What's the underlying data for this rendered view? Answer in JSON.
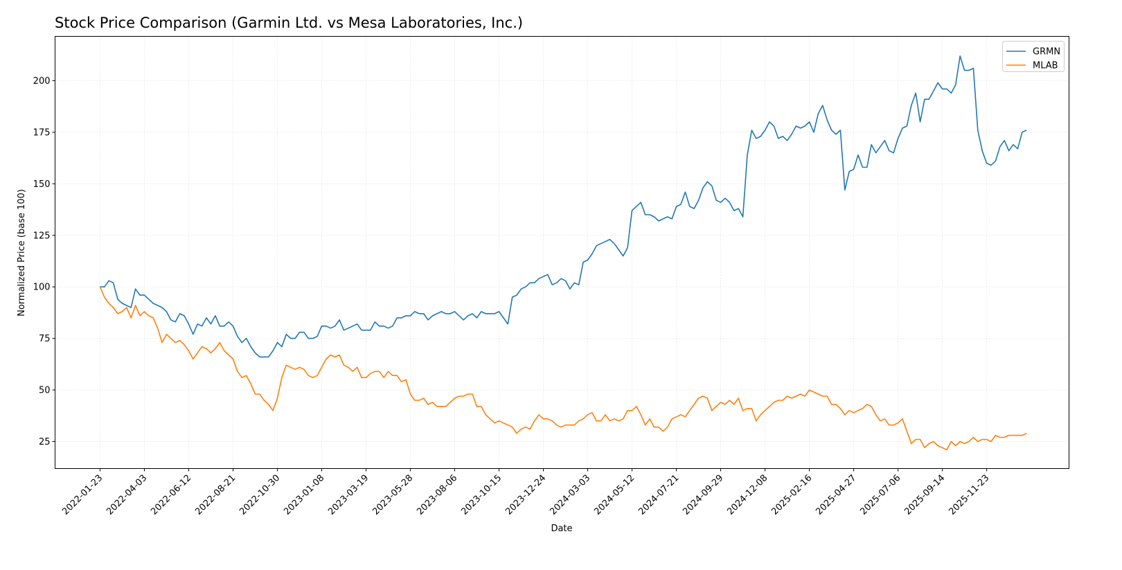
{
  "chart_data": {
    "type": "line",
    "title": "Stock Price Comparison (Garmin Ltd. vs Mesa Laboratories, Inc.)",
    "xlabel": "Date",
    "ylabel": "Normalized Price (base 100)",
    "ylim": [
      11.9,
      221.5
    ],
    "yticks": [
      25,
      50,
      75,
      100,
      125,
      150,
      175,
      200
    ],
    "xticks": [
      "2022-01-23",
      "2022-04-03",
      "2022-06-12",
      "2022-08-21",
      "2022-10-30",
      "2023-01-08",
      "2023-03-19",
      "2023-05-28",
      "2023-08-06",
      "2023-10-15",
      "2023-12-24",
      "2024-03-03",
      "2024-05-12",
      "2024-07-21",
      "2024-09-29",
      "2024-12-08",
      "2025-02-16",
      "2025-04-27",
      "2025-07-06",
      "2025-09-14",
      "2025-11-23"
    ],
    "x_start": "2022-01-23",
    "x_step_days": 7,
    "xlim_days": [
      -71,
      1530
    ],
    "grid": true,
    "legend_position": "top-right",
    "series": [
      {
        "name": "GRMN",
        "color": "#1f77b4",
        "values": [
          100,
          100,
          103,
          102,
          94,
          92,
          91,
          90,
          99,
          96,
          96,
          94,
          92,
          91,
          90,
          88,
          84,
          83,
          87,
          86,
          82,
          77,
          82,
          81,
          85,
          82,
          86,
          81,
          81,
          83,
          81,
          76,
          73,
          75,
          71,
          68,
          66,
          66,
          66,
          69,
          73,
          71,
          77,
          75,
          75,
          78,
          78,
          75,
          75,
          76,
          81,
          81,
          80,
          81,
          84,
          79,
          80,
          81,
          82,
          79,
          79,
          79,
          83,
          81,
          81,
          80,
          81,
          85,
          85,
          86,
          86,
          88,
          87,
          87,
          84,
          86,
          87,
          88,
          87,
          87,
          88,
          86,
          84,
          86,
          87,
          85,
          88,
          87,
          87,
          87,
          88,
          85,
          82,
          95,
          96,
          99,
          100,
          102,
          102,
          104,
          105,
          106,
          101,
          102,
          104,
          103,
          99,
          102,
          101,
          112,
          113,
          116,
          120,
          121,
          122,
          123,
          121,
          118,
          115,
          119,
          137,
          139,
          141,
          135,
          135,
          134,
          132,
          133,
          134,
          133,
          139,
          140,
          146,
          139,
          138,
          142,
          148,
          151,
          149,
          142,
          141,
          143,
          141,
          137,
          138,
          134,
          164,
          176,
          172,
          173,
          176,
          180,
          178,
          172,
          173,
          171,
          174,
          178,
          177,
          178,
          180,
          175,
          184,
          188,
          181,
          176,
          174,
          176,
          147,
          156,
          157,
          164,
          158,
          158,
          169,
          165,
          168,
          171,
          166,
          165,
          172,
          177,
          178,
          188,
          194,
          180,
          191,
          191,
          195,
          199,
          196,
          196,
          194,
          198,
          212,
          205,
          205,
          206,
          176,
          166,
          160,
          159,
          161,
          168,
          171,
          166,
          169,
          167,
          175,
          176
        ]
      },
      {
        "name": "MLAB",
        "color": "#ff7f0e",
        "values": [
          100,
          95,
          92,
          90,
          87,
          88,
          90,
          85,
          91,
          86,
          88,
          86,
          85,
          80,
          73,
          77,
          75,
          73,
          74,
          72,
          69,
          65,
          68,
          71,
          70,
          68,
          70,
          73,
          69,
          67,
          65,
          59,
          56,
          57,
          53,
          48,
          48,
          45,
          43,
          40,
          46,
          56,
          62,
          61,
          60,
          61,
          60,
          57,
          56,
          57,
          61,
          65,
          67,
          66,
          67,
          62,
          61,
          59,
          61,
          56,
          56,
          58,
          59,
          59,
          56,
          59,
          57,
          57,
          54,
          55,
          48,
          45,
          45,
          46,
          43,
          44,
          42,
          42,
          42,
          44,
          46,
          47,
          47,
          48,
          48,
          42,
          42,
          38,
          36,
          34,
          35,
          34,
          33,
          32,
          29,
          31,
          32,
          31,
          35,
          38,
          36,
          36,
          35,
          33,
          32,
          33,
          33,
          33,
          35,
          36,
          38,
          39,
          35,
          35,
          38,
          35,
          36,
          35,
          36,
          40,
          40,
          42,
          38,
          33,
          36,
          32,
          32,
          30,
          32,
          36,
          37,
          38,
          37,
          40,
          43,
          46,
          47,
          46,
          40,
          42,
          44,
          43,
          45,
          43,
          46,
          40,
          41,
          41,
          35,
          38,
          40,
          42,
          44,
          45,
          45,
          47,
          46,
          47,
          48,
          47,
          50,
          49,
          48,
          47,
          47,
          43,
          43,
          41,
          38,
          40,
          39,
          40,
          41,
          43,
          42,
          38,
          35,
          36,
          33,
          33,
          34,
          36,
          30,
          24,
          26,
          26,
          22,
          24,
          25,
          23,
          22,
          21,
          25,
          23,
          25,
          24,
          25,
          27,
          25,
          26,
          26,
          25,
          28,
          27,
          27,
          28,
          28,
          28,
          28,
          29
        ]
      }
    ]
  }
}
